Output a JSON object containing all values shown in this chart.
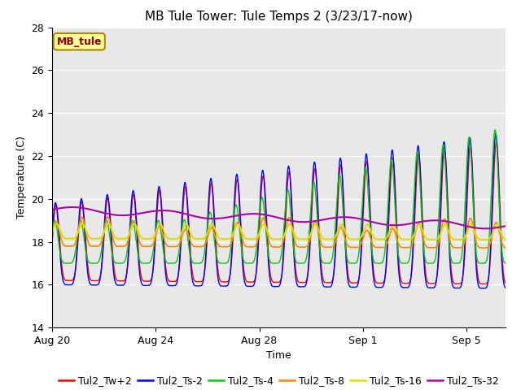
{
  "title": "MB Tule Tower: Tule Temps 2 (3/23/17-now)",
  "xlabel": "Time",
  "ylabel": "Temperature (C)",
  "ylim": [
    14,
    28
  ],
  "yticks": [
    14,
    16,
    18,
    20,
    22,
    24,
    26,
    28
  ],
  "xlim_days": [
    0,
    17.5
  ],
  "xtick_positions": [
    0,
    4,
    8,
    12,
    16
  ],
  "xtick_labels": [
    "Aug 20",
    "Aug 24",
    "Aug 28",
    "Sep 1",
    "Sep 5"
  ],
  "legend": [
    "Tul2_Tw+2",
    "Tul2_Ts-2",
    "Tul2_Ts-4",
    "Tul2_Ts-8",
    "Tul2_Ts-16",
    "Tul2_Ts-32"
  ],
  "colors": [
    "#ff0000",
    "#0000ff",
    "#00cc00",
    "#ff8800",
    "#dddd00",
    "#aa00aa"
  ],
  "annotation_text": "MB_tule",
  "annotation_color": "#880000",
  "annotation_bg": "#ffff99",
  "annotation_border": "#aa8800",
  "plot_bg": "#e8e8e8",
  "outer_bg": "#ffffff",
  "title_fontsize": 11,
  "axis_fontsize": 9,
  "legend_fontsize": 9
}
